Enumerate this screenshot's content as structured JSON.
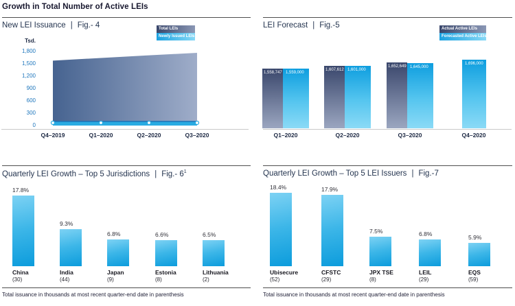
{
  "header": {
    "title": "Growth in Total Number of Active LEIs"
  },
  "sep": "|",
  "footnote": "Total issuance in thousands at most recent quarter-end date in parenthesis",
  "colors": {
    "bright_blue": "#29abe2",
    "deep_blue": "#0d9ddd",
    "tick_blue": "#1c75bc",
    "dark_navy_bar_top": "#3a476c",
    "slate_bar_bottom": "#9ba6c0",
    "area_gradient_left": "#466390",
    "area_gradient_right": "#9fadc9",
    "band_edge_blue": "#1a73b8",
    "title_text": "#24344f",
    "header_text": "#17172e",
    "rule": "#4d4d4d",
    "axis_line": "#c9c9c9"
  },
  "fig4": {
    "title": "New LEI Issuance",
    "fig": "Fig.- 4",
    "y_unit": "Tsd.",
    "legend": [
      "Total LEIs",
      "Newly Issued LEIs"
    ],
    "y_ticks": [
      "1,800",
      "1,500",
      "1,200",
      "900",
      "600",
      "300",
      "0"
    ],
    "x_labels": [
      "Q4–2019",
      "Q1–2020",
      "Q2–2020",
      "Q3–2020"
    ]
  },
  "fig5": {
    "title": "LEI Forecast",
    "fig": "Fig.-5",
    "legend": [
      "Actual Active LEIs",
      "Forecasted Active LEIs"
    ],
    "x_labels": [
      "Q1–2020",
      "Q2–2020",
      "Q3–2020",
      "Q4–2020"
    ]
  },
  "fig6": {
    "title": "Quarterly LEI Growth – Top 5 Jurisdictions",
    "fig": "Fig.- 6",
    "fig_sup": "1"
  },
  "fig7": {
    "title": "Quarterly LEI Growth – Top 5 LEI Issuers",
    "fig": "Fig.-7"
  },
  "chart_data": [
    {
      "id": "fig4",
      "type": "area",
      "title": "New LEI Issuance | Fig.- 4",
      "ylabel": "Tsd.",
      "ylim": [
        0,
        1800
      ],
      "yticks": [
        0,
        300,
        600,
        900,
        1200,
        1500,
        1800
      ],
      "x": [
        "Q4–2019",
        "Q1–2020",
        "Q2–2020",
        "Q3–2020"
      ],
      "series": [
        {
          "name": "Total LEIs",
          "style": "slate-gradient-area",
          "values": [
            1560,
            1625,
            1690,
            1750
          ],
          "estimated_from_pixels": true
        },
        {
          "name": "Newly Issued LEIs",
          "style": "bright-blue-band-with-markers",
          "values": [
            60,
            62,
            60,
            58
          ],
          "estimated_from_pixels": true
        }
      ],
      "legend_position": "top-right",
      "grid": false
    },
    {
      "id": "fig5",
      "type": "bar",
      "title": "LEI Forecast | Fig.-5",
      "categories": [
        "Q1–2020",
        "Q2–2020",
        "Q3–2020",
        "Q4–2020"
      ],
      "series": [
        {
          "name": "Actual Active LEIs",
          "values": [
            1558747,
            1607612,
            1652649,
            null
          ]
        },
        {
          "name": "Forecasted Active LEIs",
          "values": [
            1559000,
            1601000,
            1645000,
            1696000
          ]
        }
      ],
      "bar_value_labels": [
        [
          "1,558,747",
          "1,607,612",
          "1,652,649",
          null
        ],
        [
          "1,559,000",
          "1,601,000",
          "1,645,000",
          "1,696,000"
        ]
      ],
      "ylim_rendered": [
        640000,
        1700000
      ],
      "baseline_truncated": true,
      "legend_position": "top-right",
      "grid": false
    },
    {
      "id": "fig6",
      "type": "bar",
      "title": "Quarterly LEI Growth – Top 5 Jurisdictions | Fig.- 6¹",
      "categories": [
        "China",
        "India",
        "Japan",
        "Estonia",
        "Lithuania"
      ],
      "category_sub_labels": [
        "(30)",
        "(44)",
        "(9)",
        "(8)",
        "(2)"
      ],
      "values": [
        17.8,
        9.3,
        6.8,
        6.6,
        6.5
      ],
      "value_labels": [
        "17.8%",
        "9.3%",
        "6.8%",
        "6.6%",
        "6.5%"
      ],
      "ylim": [
        0,
        20
      ],
      "footnote": "Total issuance in thousands at most recent quarter-end date in parenthesis"
    },
    {
      "id": "fig7",
      "type": "bar",
      "title": "Quarterly LEI Growth – Top 5 LEI Issuers | Fig.-7",
      "categories": [
        "Ubisecure",
        "CFSTC",
        "JPX TSE",
        "LEIL",
        "EQS"
      ],
      "category_sub_labels": [
        "(52)",
        "(29)",
        "(8)",
        "(29)",
        "(59)"
      ],
      "values": [
        18.4,
        17.9,
        7.5,
        6.8,
        5.9
      ],
      "value_labels": [
        "18.4%",
        "17.9%",
        "7.5%",
        "6.8%",
        "5.9%"
      ],
      "ylim": [
        0,
        20
      ],
      "footnote": "Total issuance in thousands at most recent quarter-end date in parenthesis"
    }
  ]
}
